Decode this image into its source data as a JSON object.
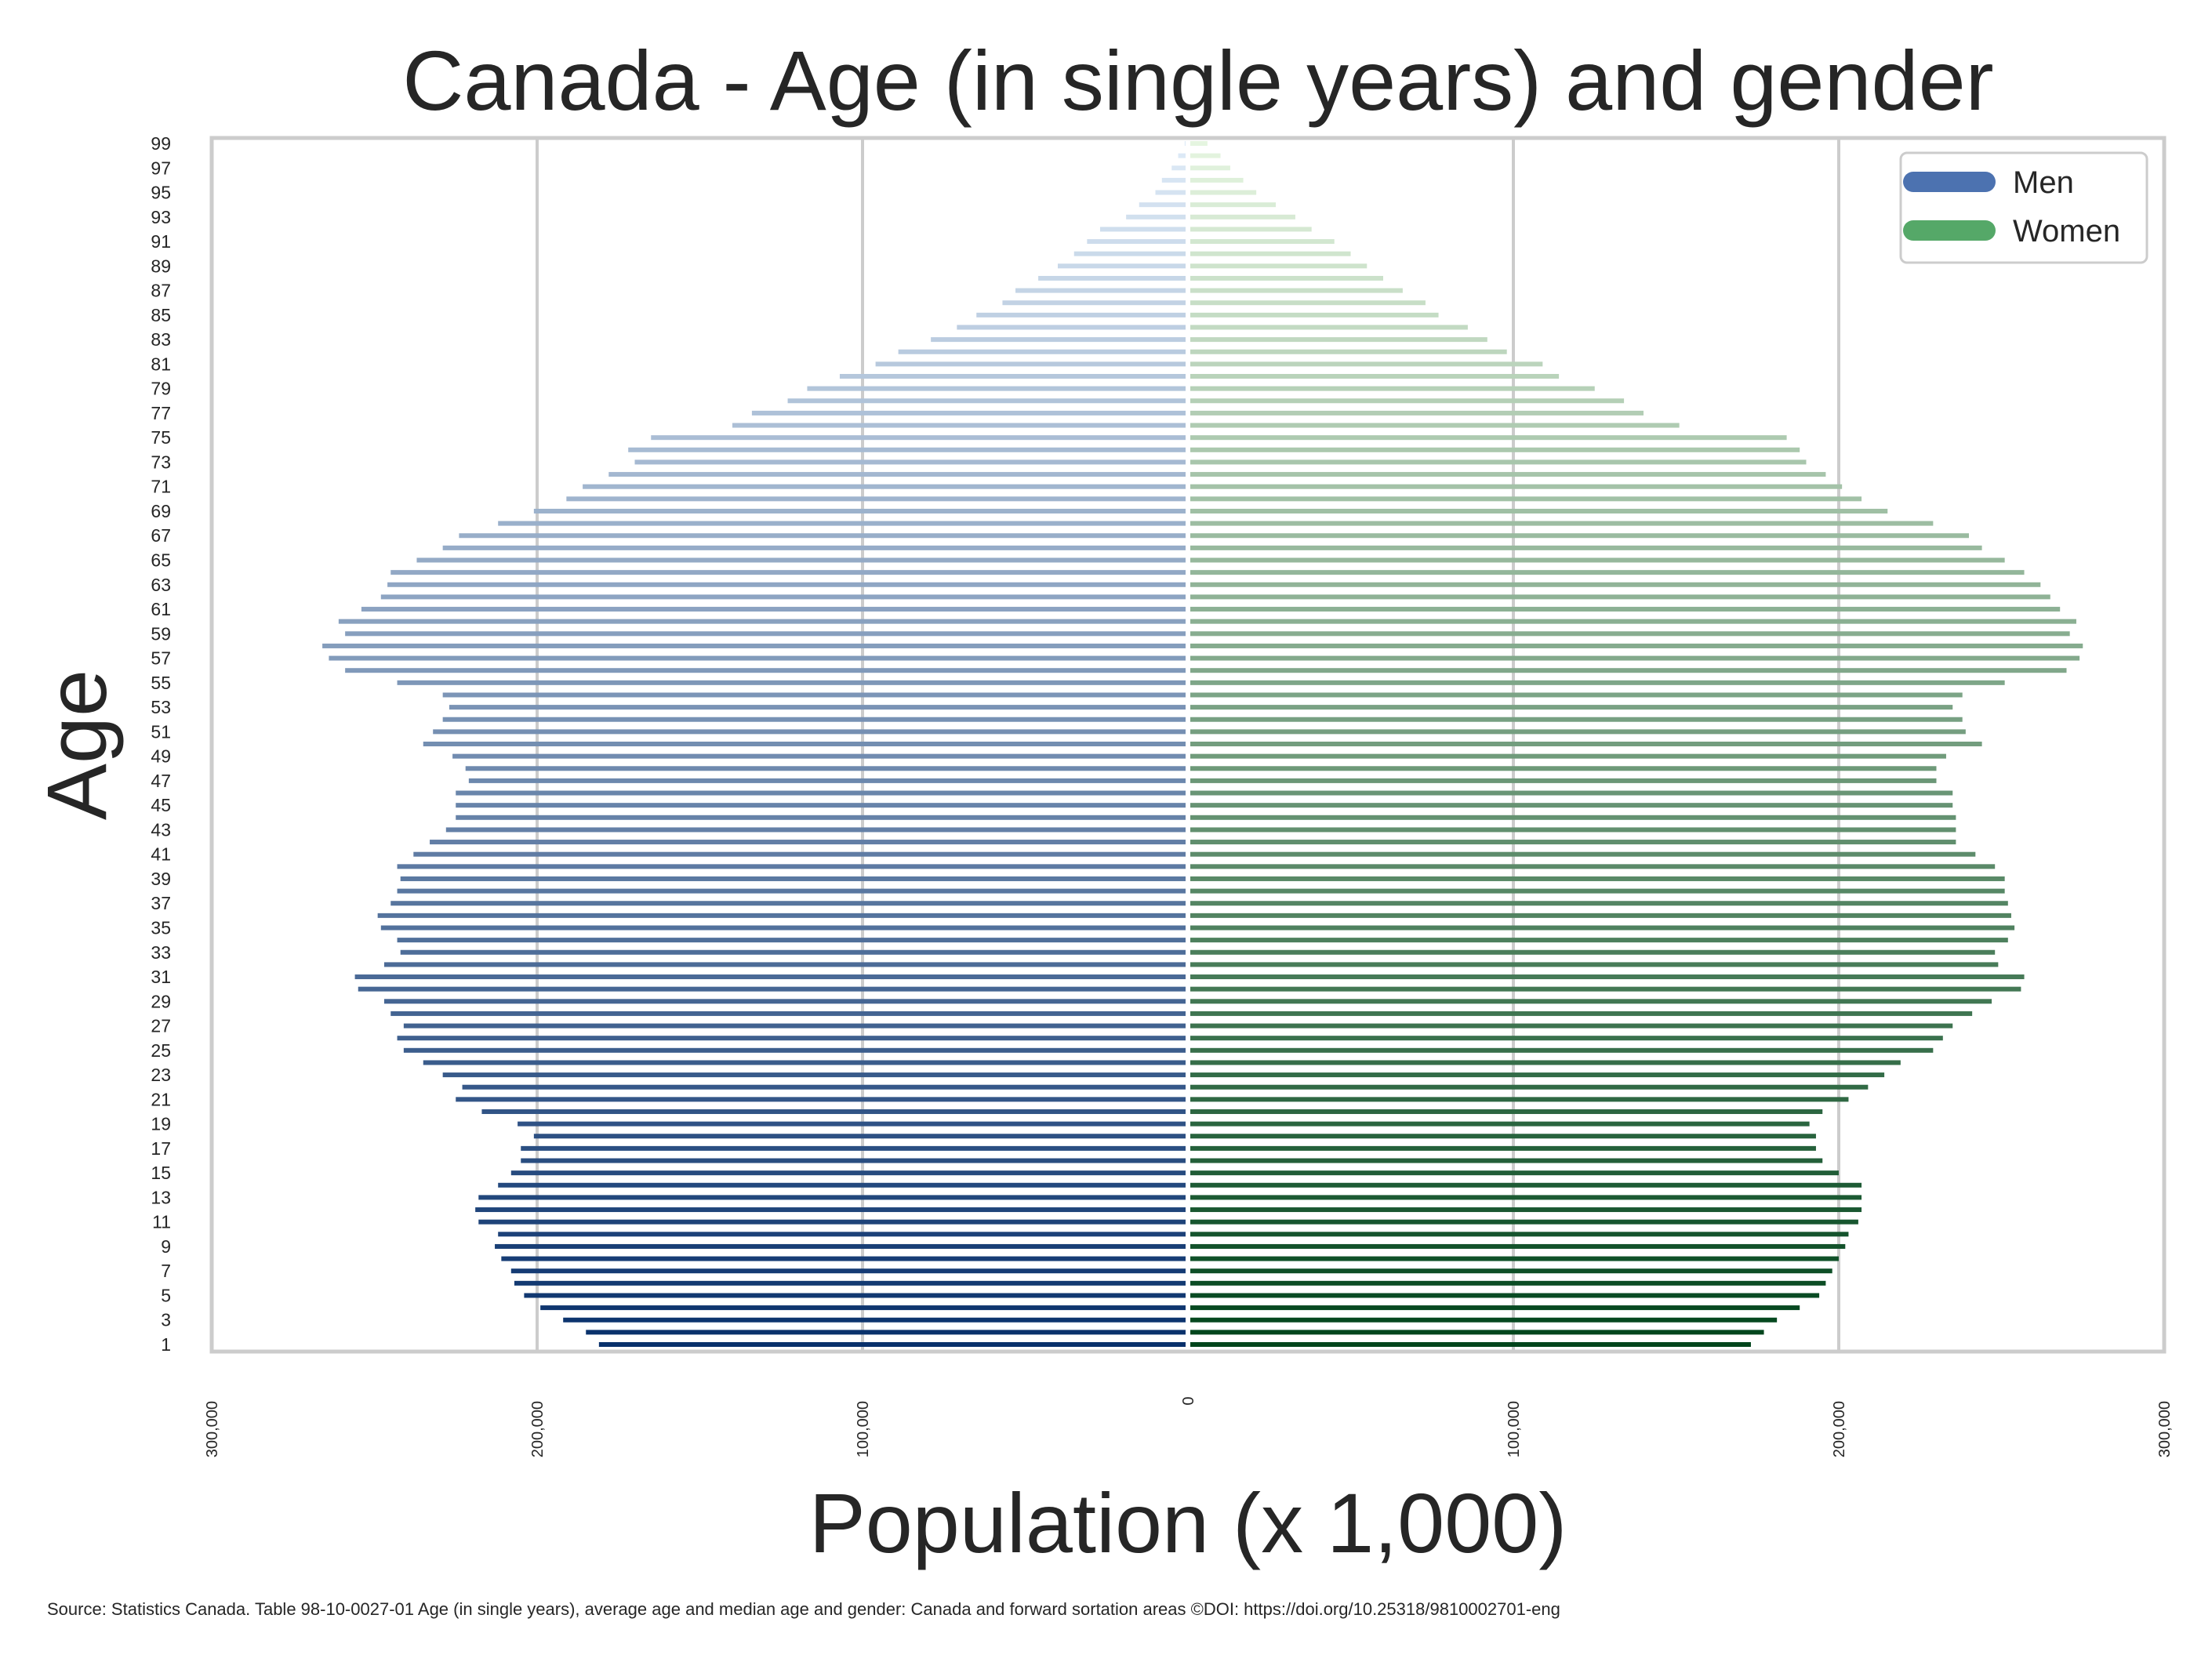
{
  "chart_data": {
    "type": "bar",
    "orientation": "horizontal",
    "title": "Canada - Age (in single years) and gender",
    "xlabel": "Population (x 1,000)",
    "ylabel": "Age",
    "xlim": [
      -300000,
      300000
    ],
    "x_ticks": [
      -300000,
      -200000,
      -100000,
      0,
      100000,
      200000,
      300000
    ],
    "x_tick_labels": [
      "300,000",
      "200,000",
      "100,000",
      "0",
      "100,000",
      "200,000",
      "300,000"
    ],
    "y_tick_labels": [
      "1",
      "3",
      "5",
      "7",
      "9",
      "11",
      "13",
      "15",
      "17",
      "19",
      "21",
      "23",
      "25",
      "27",
      "29",
      "31",
      "33",
      "35",
      "37",
      "39",
      "41",
      "43",
      "45",
      "47",
      "49",
      "51",
      "53",
      "55",
      "57",
      "59",
      "61",
      "63",
      "65",
      "67",
      "69",
      "71",
      "73",
      "75",
      "77",
      "79",
      "81",
      "83",
      "85",
      "87",
      "89",
      "91",
      "93",
      "95",
      "97",
      "99"
    ],
    "grid": "x",
    "legend_position": "top-right",
    "categories": [
      1,
      2,
      3,
      4,
      5,
      6,
      7,
      8,
      9,
      10,
      11,
      12,
      13,
      14,
      15,
      16,
      17,
      18,
      19,
      20,
      21,
      22,
      23,
      24,
      25,
      26,
      27,
      28,
      29,
      30,
      31,
      32,
      33,
      34,
      35,
      36,
      37,
      38,
      39,
      40,
      41,
      42,
      43,
      44,
      45,
      46,
      47,
      48,
      49,
      50,
      51,
      52,
      53,
      54,
      55,
      56,
      57,
      58,
      59,
      60,
      61,
      62,
      63,
      64,
      65,
      66,
      67,
      68,
      69,
      70,
      71,
      72,
      73,
      74,
      75,
      76,
      77,
      78,
      79,
      80,
      81,
      82,
      83,
      84,
      85,
      86,
      87,
      88,
      89,
      90,
      91,
      92,
      93,
      94,
      95,
      96,
      97,
      98,
      99
    ],
    "series": [
      {
        "name": "Men",
        "color": "#4c72b0",
        "palette": [
          "#08306b",
          "#deebf7"
        ],
        "values": [
          181000,
          185000,
          192000,
          199000,
          204000,
          207000,
          208000,
          211000,
          213000,
          212000,
          218000,
          219000,
          218000,
          212000,
          208000,
          205000,
          205000,
          201000,
          206000,
          217000,
          225000,
          223000,
          229000,
          235000,
          241000,
          243000,
          241000,
          245000,
          247000,
          255000,
          256000,
          247000,
          242000,
          243000,
          248000,
          249000,
          245000,
          243000,
          242000,
          243000,
          238000,
          233000,
          228000,
          225000,
          225000,
          225000,
          221000,
          222000,
          226000,
          235000,
          232000,
          229000,
          227000,
          229000,
          243000,
          259000,
          264000,
          266000,
          259000,
          261000,
          254000,
          248000,
          246000,
          245000,
          237000,
          229000,
          224000,
          212000,
          201000,
          191000,
          186000,
          178000,
          170000,
          172000,
          165000,
          140000,
          134000,
          123000,
          117000,
          107000,
          96000,
          89000,
          79000,
          71000,
          65000,
          57000,
          53000,
          46000,
          40000,
          35000,
          31000,
          27000,
          19000,
          15000,
          10000,
          8000,
          5000,
          3000,
          1000
        ]
      },
      {
        "name": "Women",
        "color": "#55a868",
        "palette": [
          "#00441b",
          "#e5f5e0"
        ],
        "values": [
          173000,
          177000,
          181000,
          188000,
          194000,
          196000,
          198000,
          200000,
          202000,
          203000,
          206000,
          207000,
          207000,
          207000,
          200000,
          195000,
          193000,
          193000,
          191000,
          195000,
          203000,
          209000,
          214000,
          219000,
          229000,
          232000,
          235000,
          241000,
          247000,
          256000,
          257000,
          249000,
          248000,
          252000,
          254000,
          253000,
          252000,
          251000,
          251000,
          248000,
          242000,
          236000,
          236000,
          236000,
          235000,
          235000,
          230000,
          230000,
          233000,
          244000,
          239000,
          238000,
          235000,
          238000,
          251000,
          270000,
          274000,
          275000,
          271000,
          273000,
          268000,
          265000,
          262000,
          257000,
          251000,
          244000,
          240000,
          229000,
          215000,
          207000,
          201000,
          196000,
          190000,
          188000,
          184000,
          151000,
          140000,
          134000,
          125000,
          114000,
          109000,
          98000,
          92000,
          86000,
          77000,
          73000,
          66000,
          60000,
          55000,
          50000,
          45000,
          38000,
          33000,
          27000,
          21000,
          17000,
          13000,
          10000,
          6000
        ]
      }
    ],
    "source": "Source: Statistics Canada. Table 98-10-0027-01  Age (in single years), average age and median age and gender: Canada and forward sortation areas ©DOI: https://doi.org/10.25318/9810002701-eng"
  }
}
